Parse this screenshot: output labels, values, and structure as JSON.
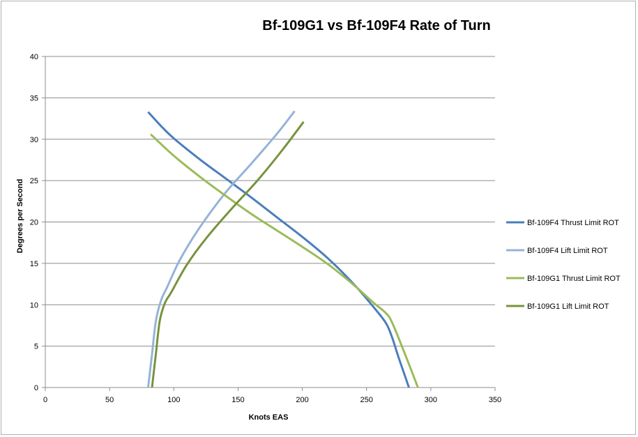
{
  "chart_data": {
    "type": "line",
    "title": "Bf-109G1 vs Bf-109F4 Rate of Turn",
    "xlabel": "Knots EAS",
    "ylabel": "Degrees per Second",
    "xlim": [
      0,
      350
    ],
    "ylim": [
      0,
      40
    ],
    "xticks": [
      0,
      50,
      100,
      150,
      200,
      250,
      300,
      350
    ],
    "yticks": [
      0,
      5,
      10,
      15,
      20,
      25,
      30,
      35,
      40
    ],
    "grid": "horizontal",
    "legend_position": "right",
    "series": [
      {
        "name": "Bf-109F4 Thrust Limit ROT",
        "color": "#4a7ebb",
        "points": [
          [
            80,
            33.3
          ],
          [
            90,
            31.6
          ],
          [
            100,
            30.1
          ],
          [
            120,
            27.6
          ],
          [
            140,
            25.3
          ],
          [
            160,
            23.0
          ],
          [
            180,
            20.6
          ],
          [
            200,
            18.2
          ],
          [
            220,
            15.6
          ],
          [
            240,
            12.5
          ],
          [
            255,
            9.8
          ],
          [
            265,
            7.8
          ],
          [
            270,
            6.0
          ],
          [
            275,
            3.6
          ],
          [
            283,
            0
          ]
        ]
      },
      {
        "name": "Bf-109F4 Lift Limit ROT",
        "color": "#95b3d7",
        "points": [
          [
            80,
            0
          ],
          [
            83,
            4
          ],
          [
            86,
            8
          ],
          [
            90,
            10.5
          ],
          [
            95,
            12.2
          ],
          [
            105,
            15.5
          ],
          [
            120,
            19.3
          ],
          [
            140,
            23.5
          ],
          [
            160,
            27.0
          ],
          [
            180,
            30.6
          ],
          [
            194,
            33.4
          ]
        ]
      },
      {
        "name": "Bf-109G1 Thrust Limit ROT",
        "color": "#9bbb59",
        "points": [
          [
            82,
            30.6
          ],
          [
            100,
            28.0
          ],
          [
            120,
            25.5
          ],
          [
            140,
            23.2
          ],
          [
            160,
            21.0
          ],
          [
            180,
            19.0
          ],
          [
            200,
            17.0
          ],
          [
            220,
            14.9
          ],
          [
            240,
            12.4
          ],
          [
            255,
            10.3
          ],
          [
            265,
            9.0
          ],
          [
            270,
            7.8
          ],
          [
            280,
            4.0
          ],
          [
            290,
            0
          ]
        ]
      },
      {
        "name": "Bf-109G1 Lift Limit ROT",
        "color": "#77933c",
        "points": [
          [
            83,
            0
          ],
          [
            86,
            4
          ],
          [
            89,
            8
          ],
          [
            93,
            10.2
          ],
          [
            98,
            11.5
          ],
          [
            110,
            14.8
          ],
          [
            125,
            18.0
          ],
          [
            145,
            21.6
          ],
          [
            165,
            25.0
          ],
          [
            185,
            28.8
          ],
          [
            201,
            32.1
          ]
        ]
      }
    ]
  }
}
